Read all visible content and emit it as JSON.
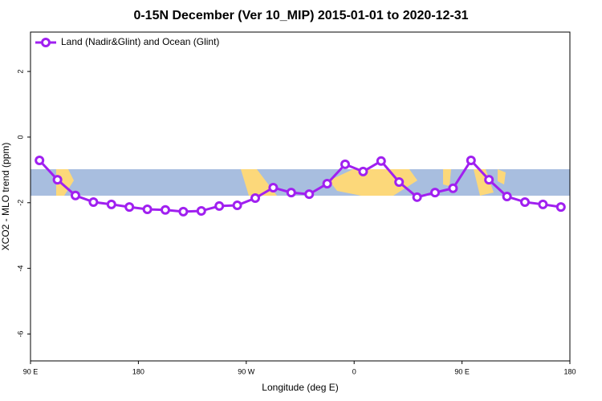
{
  "chart_data": {
    "type": "line",
    "title": "0-15N December (Ver 10_MIP)   2015-01-01 to 2020-12-31",
    "x_label": "Longitude (deg E)",
    "y_label": "XCO2 - MLO trend (ppm)",
    "x": [
      97.5,
      112.5,
      127.5,
      142.5,
      157.5,
      172.5,
      187.5,
      202.5,
      217.5,
      232.5,
      247.5,
      262.5,
      277.5,
      292.5,
      307.5,
      322.5,
      337.5,
      352.5,
      367.5,
      382.5,
      397.5,
      412.5,
      427.5,
      442.5,
      457.5,
      472.5,
      487.5,
      502.5,
      517.5,
      532.5
    ],
    "series": [
      {
        "name": "Land (Nadir&Glint) and Ocean (Glint)",
        "color": "#a020f0",
        "values": [
          -0.71,
          -1.3,
          -1.78,
          -1.98,
          -2.05,
          -2.13,
          -2.2,
          -2.22,
          -2.27,
          -2.25,
          -2.1,
          -2.08,
          -1.86,
          -1.54,
          -1.69,
          -1.74,
          -1.42,
          -0.83,
          -1.05,
          -0.73,
          -1.37,
          -1.83,
          -1.69,
          -1.56,
          -0.71,
          -1.3,
          -1.81,
          -1.98,
          -2.05,
          -2.13
        ]
      }
    ],
    "xlim": [
      90,
      540
    ],
    "xticks": [
      {
        "value": 90,
        "label": "90 E"
      },
      {
        "value": 180,
        "label": "180"
      },
      {
        "value": 270,
        "label": "90 W"
      },
      {
        "value": 360,
        "label": "0"
      },
      {
        "value": 450,
        "label": "90 E"
      },
      {
        "value": 540,
        "label": "180"
      }
    ],
    "ylim": [
      -6.82,
      3.2
    ],
    "yticks": [
      -6,
      -4,
      -2,
      0,
      2
    ],
    "grid": false,
    "legend": "top-left"
  }
}
